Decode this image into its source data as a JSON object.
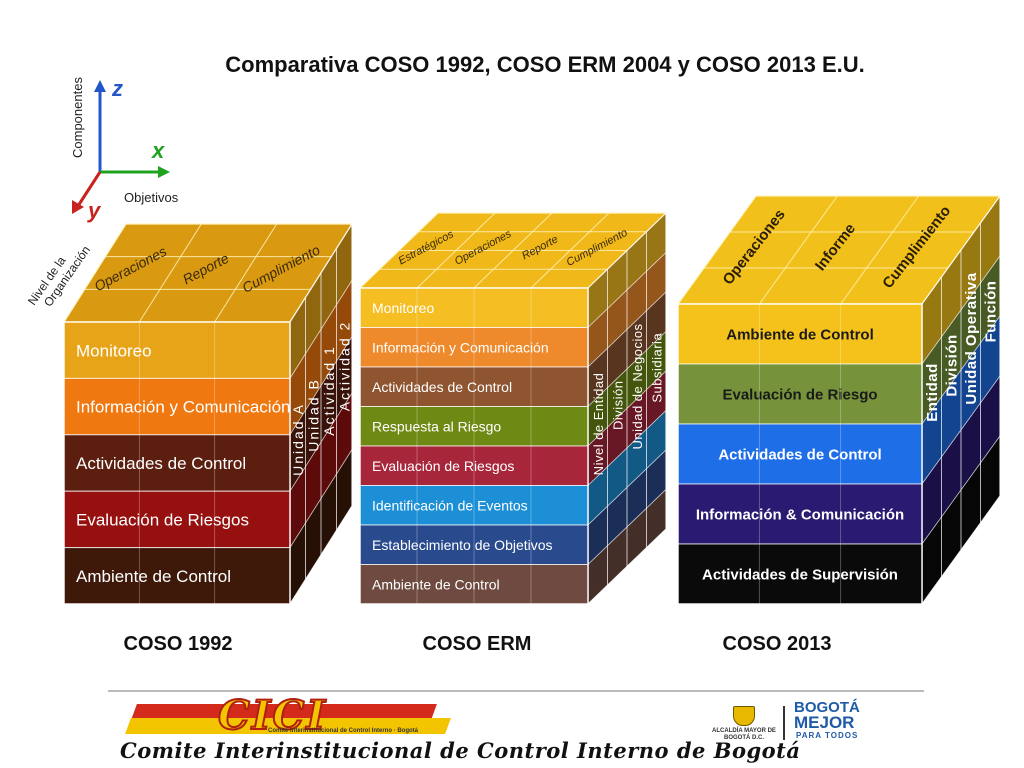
{
  "title": "Comparativa COSO 1992, COSO ERM 2004 y COSO 2013 E.U.",
  "axes": {
    "z_label": "Componentes",
    "x_label": "Objetivos",
    "y_label": "Nivel de la Organización",
    "z_letter": "z",
    "x_letter": "x",
    "y_letter": "y",
    "z_color": "#2356c8",
    "x_color": "#1fa31f",
    "y_color": "#c8221e"
  },
  "cubes": [
    {
      "caption": "COSO 1992",
      "top_labels": [
        "Operaciones",
        "Reporte",
        "Cumplimiento"
      ],
      "top_color": "#d99a12",
      "side_labels": [
        "Unidad A",
        "Unidad B",
        "Actividad 1",
        "Actividad 2"
      ],
      "layers": [
        {
          "label": "Monitoreo",
          "color": "#e8a418"
        },
        {
          "label": "Información y Comunicación",
          "color": "#f07810"
        },
        {
          "label": "Actividades de Control",
          "color": "#5c1e0e"
        },
        {
          "label": "Evaluación de Riesgos",
          "color": "#961010"
        },
        {
          "label": "Ambiente de Control",
          "color": "#3e1808"
        }
      ]
    },
    {
      "caption": "COSO ERM",
      "top_labels": [
        "Estratégicos",
        "Operaciones",
        "Reporte",
        "Cumplimiento"
      ],
      "top_color": "#f0b818",
      "side_labels": [
        "Nivel de Entidad",
        "División",
        "Unidad de Negocios",
        "Subsidiaria"
      ],
      "layers": [
        {
          "label": "Monitoreo",
          "color": "#f5be22"
        },
        {
          "label": "Información y Comunicación",
          "color": "#ee8a2c"
        },
        {
          "label": "Actividades de Control",
          "color": "#8e5530"
        },
        {
          "label": "Respuesta al Riesgo",
          "color": "#6e8a14"
        },
        {
          "label": "Evaluación de Riesgos",
          "color": "#a8263a"
        },
        {
          "label": "Identificación de Eventos",
          "color": "#1d8fd6"
        },
        {
          "label": "Establecimiento de Objetivos",
          "color": "#2a4a8e"
        },
        {
          "label": "Ambiente de Control",
          "color": "#6e4a40"
        }
      ]
    },
    {
      "caption": "COSO 2013",
      "top_labels": [
        "Operaciones",
        "Informe",
        "Cumplimiento"
      ],
      "top_color": "#f2c01a",
      "side_labels": [
        "Entidad",
        "División",
        "Unidad Operativa",
        "Función"
      ],
      "layers": [
        {
          "label": "Ambiente de Control",
          "color": "#f5c21c"
        },
        {
          "label": "Evaluación de Riesgo",
          "color": "#76923a"
        },
        {
          "label": "Actividades de Control",
          "color": "#1e6ee8"
        },
        {
          "label": "Información & Comunicación",
          "color": "#2a1a72"
        },
        {
          "label": "Actividades de Supervisión",
          "color": "#0a0a0a"
        }
      ]
    }
  ],
  "footer": {
    "logo_text": "CICI",
    "logo_tagline": "Comité Interinstitucional de Control Interno · Bogotá",
    "committee_text": "Comite Interinstitucional de Control Interno de Bogotá",
    "alcaldia_text": "ALCALDÍA MAYOR DE BOGOTÁ D.C.",
    "bogota_text": "BOGOTÁ",
    "mejor_text": "MEJOR",
    "para_todos_text": "PARA TODOS"
  }
}
